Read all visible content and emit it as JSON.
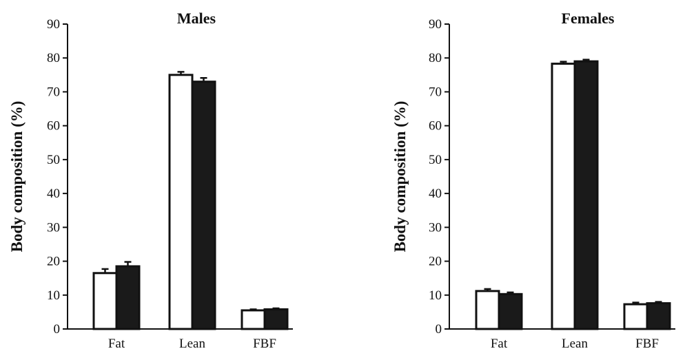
{
  "chart_data": [
    {
      "type": "bar",
      "title": "Males",
      "ylabel": "Body composition (%)",
      "xlabel": "",
      "ylim": [
        0,
        90
      ],
      "yticks": [
        0,
        10,
        20,
        30,
        40,
        50,
        60,
        70,
        80,
        90
      ],
      "categories": [
        "Fat",
        "Lean",
        "FBF"
      ],
      "series": [
        {
          "values": [
            16.5,
            75.0,
            5.5
          ],
          "errors": [
            1.2,
            0.9,
            0.3
          ],
          "color": "#ffffff"
        },
        {
          "values": [
            18.5,
            73.0,
            5.8
          ],
          "errors": [
            1.3,
            1.1,
            0.3
          ],
          "color": "#1a1a1a"
        }
      ],
      "grid": false,
      "legend": "none"
    },
    {
      "type": "bar",
      "title": "Females",
      "ylabel": "Body composition (%)",
      "xlabel": "",
      "ylim": [
        0,
        90
      ],
      "yticks": [
        0,
        10,
        20,
        30,
        40,
        50,
        60,
        70,
        80,
        90
      ],
      "categories": [
        "Fat",
        "Lean",
        "FBF"
      ],
      "series": [
        {
          "values": [
            11.2,
            78.3,
            7.3
          ],
          "errors": [
            0.6,
            0.6,
            0.5
          ],
          "color": "#ffffff"
        },
        {
          "values": [
            10.3,
            79.0,
            7.6
          ],
          "errors": [
            0.5,
            0.5,
            0.4
          ],
          "color": "#1a1a1a"
        }
      ],
      "grid": false,
      "legend": "none"
    }
  ]
}
